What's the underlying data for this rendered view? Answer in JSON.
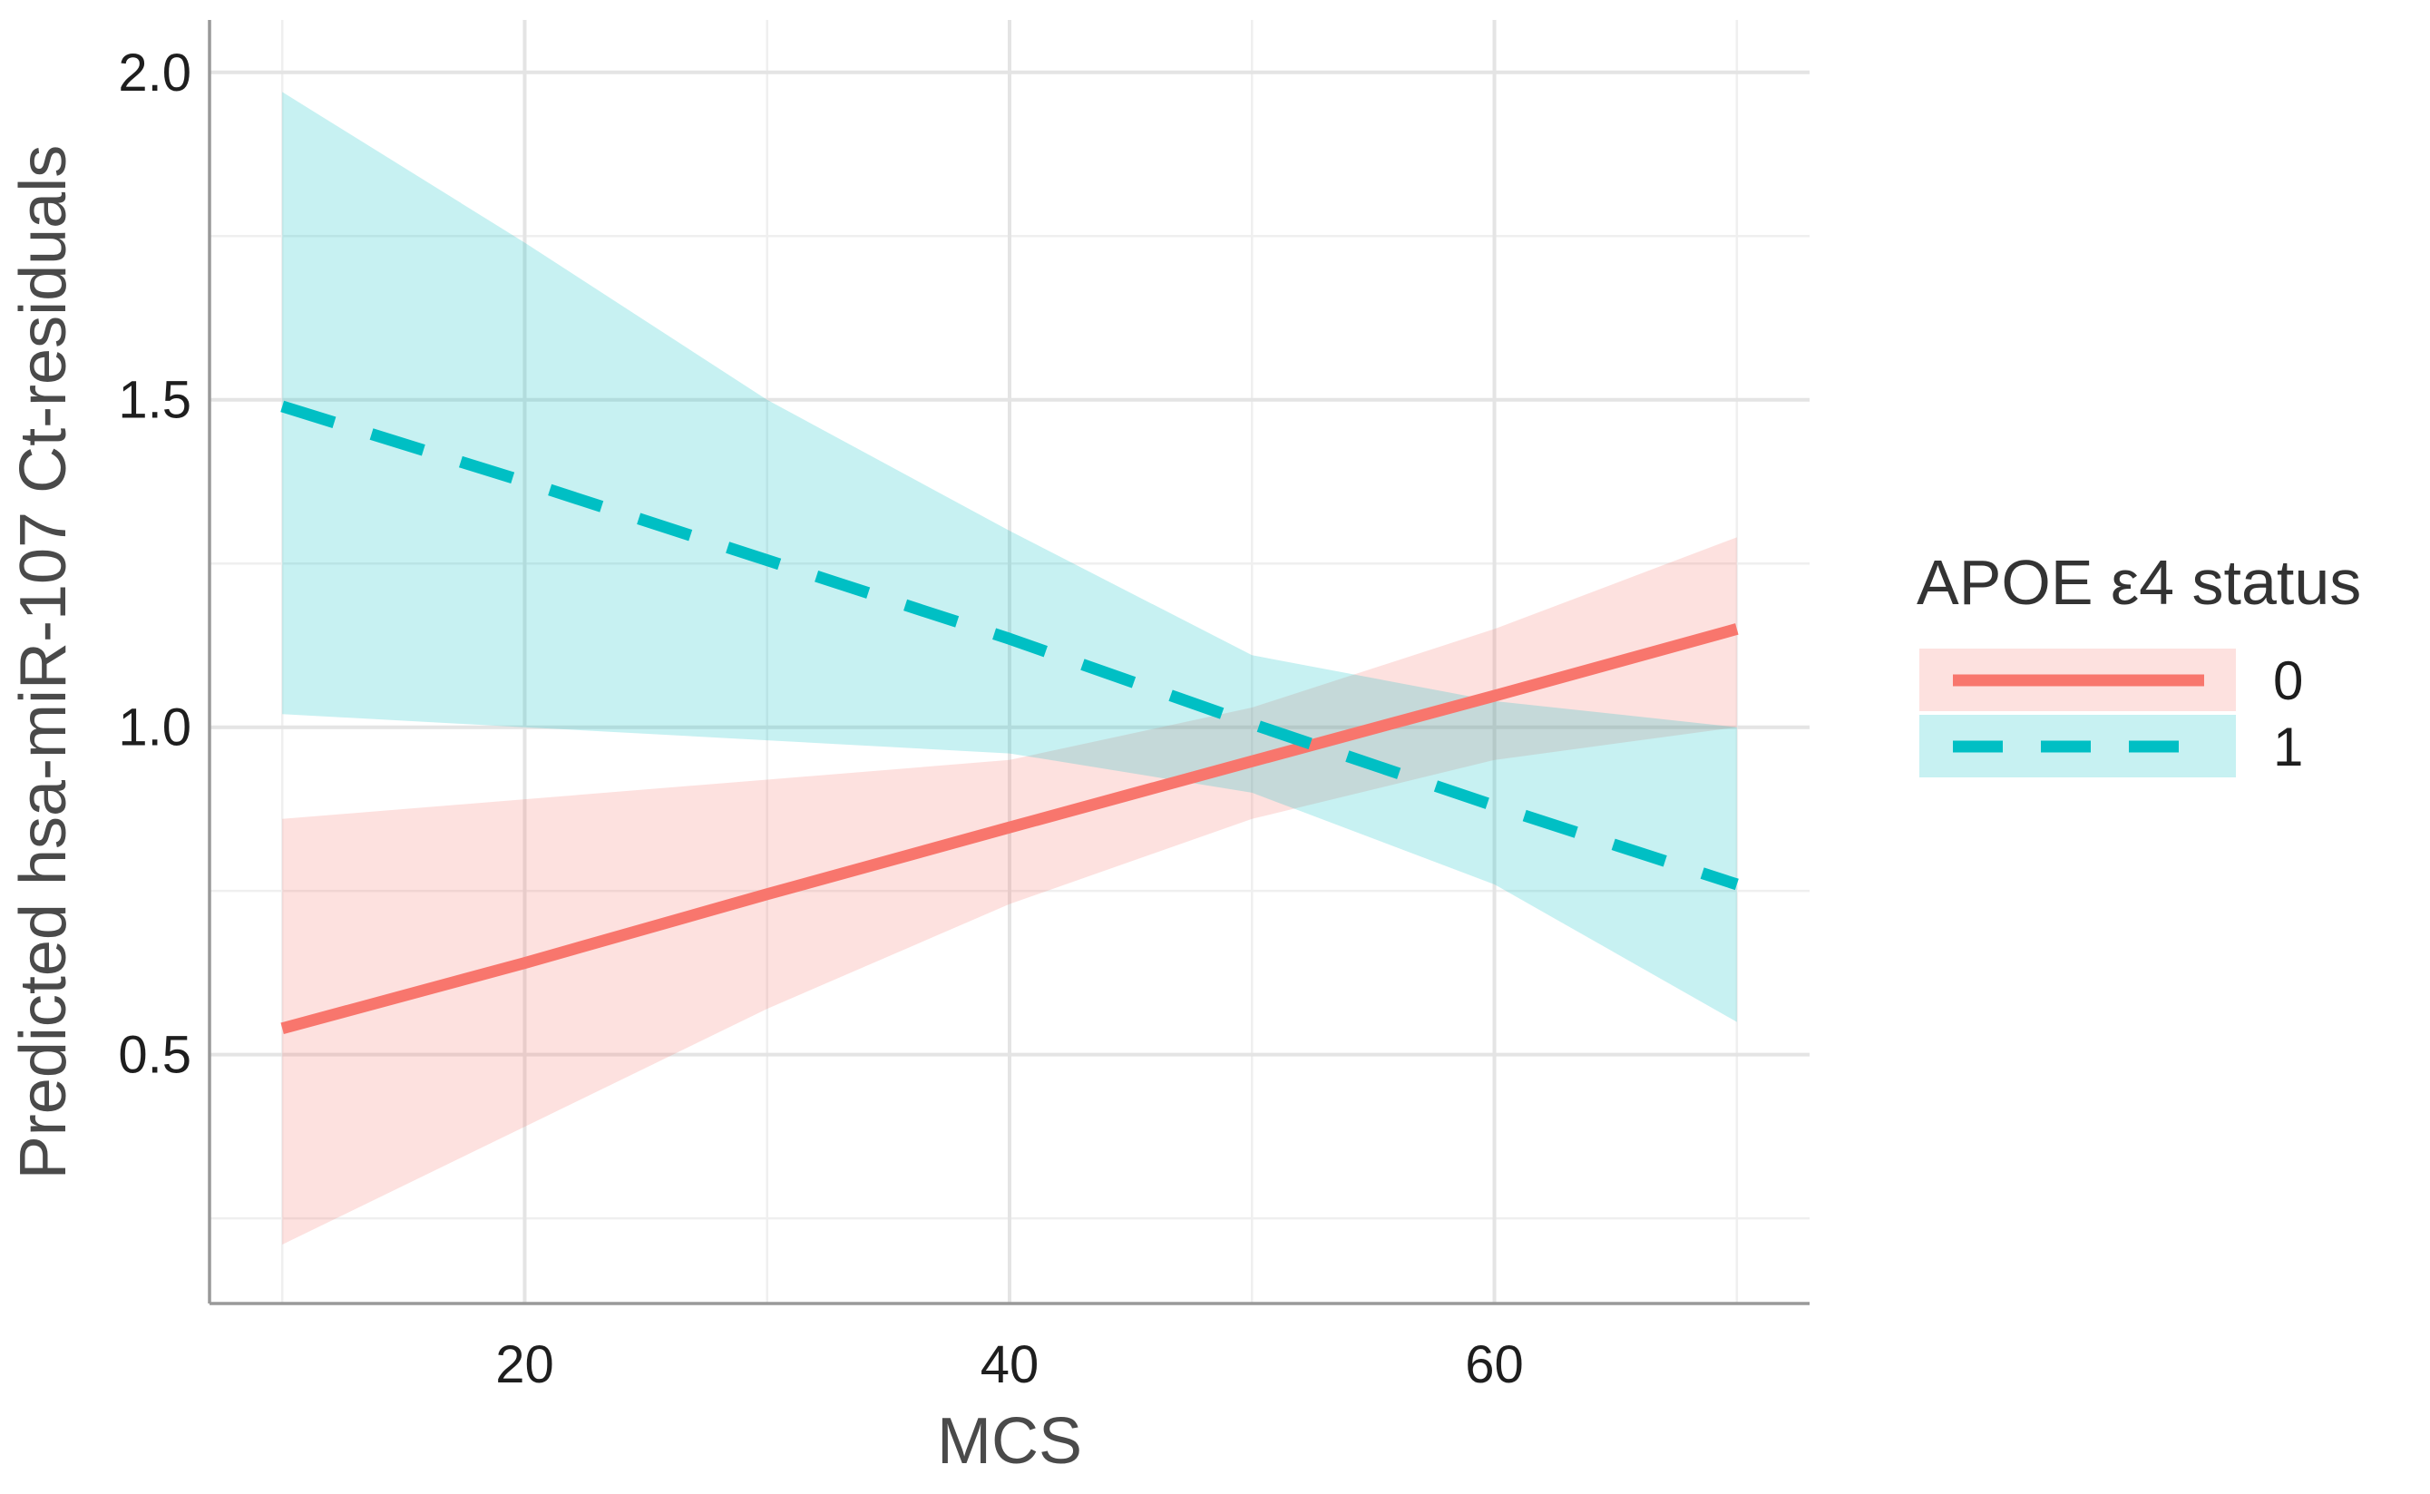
{
  "chart_data": {
    "type": "line",
    "title": "",
    "xlabel": "MCS",
    "ylabel": "Predicted hsa-miR-107 Ct-residuals",
    "xlim": [
      7,
      73
    ],
    "ylim": [
      0.12,
      2.08
    ],
    "x_ticks": [
      20,
      40,
      60
    ],
    "x_tick_labels": [
      "20",
      "40",
      "60"
    ],
    "x_minor_ticks": [
      10,
      30,
      50,
      70
    ],
    "y_ticks": [
      0.5,
      1.0,
      1.5,
      2.0
    ],
    "y_tick_labels": [
      "0.5",
      "1.0",
      "1.5",
      "2.0"
    ],
    "y_minor_ticks": [
      0.25,
      0.75,
      1.25,
      1.75
    ],
    "grid": true,
    "legend": {
      "title": "APOE ε4 status",
      "position": "right"
    },
    "series": [
      {
        "name": "0",
        "label": "0",
        "color": "#F8766D",
        "band_color": "#F8766D",
        "line_style": "solid",
        "x": [
          10,
          20,
          30,
          40,
          50,
          60,
          70
        ],
        "values": [
          0.54,
          0.64,
          0.745,
          0.847,
          0.948,
          1.048,
          1.15
        ],
        "ci_lower": [
          0.21,
          0.39,
          0.57,
          0.73,
          0.86,
          0.95,
          1.0
        ],
        "ci_upper": [
          0.86,
          0.89,
          0.92,
          0.95,
          1.03,
          1.15,
          1.29
        ]
      },
      {
        "name": "1",
        "label": "1",
        "color": "#00BFC4",
        "band_color": "#00BFC4",
        "line_style": "dashed",
        "x": [
          10,
          20,
          30,
          40,
          50,
          60,
          70
        ],
        "values": [
          1.49,
          1.375,
          1.255,
          1.135,
          1.005,
          0.88,
          0.76
        ],
        "ci_lower": [
          1.02,
          1.0,
          0.98,
          0.96,
          0.9,
          0.76,
          0.55
        ],
        "ci_upper": [
          1.97,
          1.74,
          1.5,
          1.3,
          1.11,
          1.04,
          1.0
        ]
      }
    ]
  }
}
